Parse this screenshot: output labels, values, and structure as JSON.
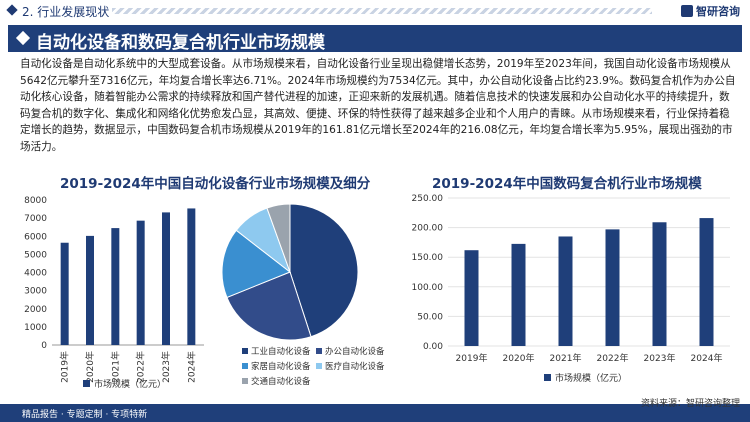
{
  "header": {
    "section": "2. 行业发展现状",
    "brand": "智研咨询"
  },
  "banner": {
    "title": "自动化设备和数码复合机行业市场规模"
  },
  "paragraph": "自动化设备是自动化系统中的大型成套设备。从市场规模来看，自动化设备行业呈现出稳健增长态势，2019年至2023年间，我国自动化设备市场规模从5642亿元攀升至7316亿元，年均复合增长率达6.71%。2024年市场规模约为7534亿元。其中，办公自动化设备占比约23.9%。数码复合机作为办公自动化核心设备，随着智能办公需求的持续释放和国产替代进程的加速，正迎来新的发展机遇。随着信息技术的快速发展和办公自动化水平的持续提升，数码复合机的数字化、集成化和网络化优势愈发凸显，其高效、便捷、环保的特性获得了越来越多企业和个人用户的青睐。从市场规模来看，行业保持着稳定增长的趋势，数据显示，中国数码复合机市场规模从2019年的161.81亿元增长至2024年的216.08亿元，年均复合增长率为5.95%，展现出强劲的市场活力。",
  "colors": {
    "navy": "#1f3f7a",
    "bar": "#1f3f7a",
    "pie": [
      "#1f3f7a",
      "#324c8a",
      "#3a8fd0",
      "#8ec9ef",
      "#9aa3ad"
    ]
  },
  "chart_data": [
    {
      "type": "bar",
      "title": "2019-2024年中国自动化设备行业市场规模及细分",
      "categories": [
        "2019年",
        "2020年",
        "2021年",
        "2022年",
        "2023年",
        "2024年"
      ],
      "series": [
        {
          "name": "市场规模（亿元）",
          "values": [
            5642,
            6020,
            6450,
            6860,
            7316,
            7534
          ]
        }
      ],
      "yticks": [
        "0",
        "1000",
        "2000",
        "3000",
        "4000",
        "5000",
        "6000",
        "7000",
        "8000"
      ],
      "ylim": [
        0,
        8000
      ]
    },
    {
      "type": "pie",
      "labels": [
        "工业自动化设备",
        "办公自动化设备",
        "家居自动化设备",
        "医疗自动化设备",
        "交通自动化设备"
      ],
      "values": [
        45.0,
        23.9,
        16.6,
        9.0,
        5.5
      ]
    },
    {
      "type": "bar",
      "title": "2019-2024年中国数码复合机行业市场规模",
      "categories": [
        "2019年",
        "2020年",
        "2021年",
        "2022年",
        "2023年",
        "2024年"
      ],
      "series": [
        {
          "name": "市场规模（亿元）",
          "values": [
            161.81,
            172.5,
            185.0,
            197.0,
            209.0,
            216.08
          ]
        }
      ],
      "yticks": [
        "0.00",
        "50.00",
        "100.00",
        "150.00",
        "200.00",
        "250.00"
      ],
      "ylim": [
        0,
        250
      ]
    }
  ],
  "footer": {
    "text": "精品报告 · 专题定制 · 专项特新",
    "source": "资料来源：智研咨询整理"
  }
}
